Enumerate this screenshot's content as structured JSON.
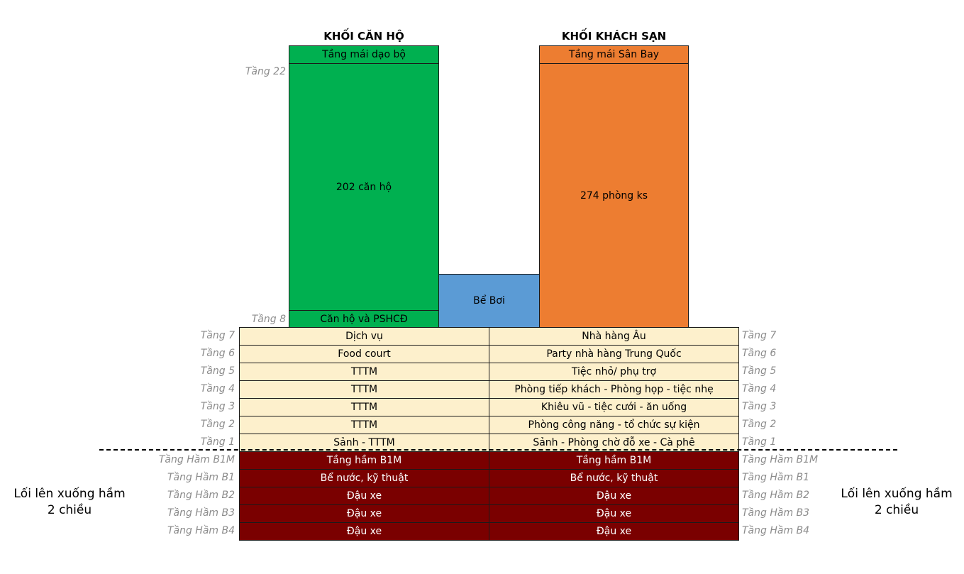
{
  "apartment_block": {
    "title": "KHỐI CĂN HỘ",
    "roof": "Tầng mái dạo bộ",
    "main": "202 căn hộ",
    "lower": "Căn hộ và PSHCĐ",
    "top_floor_label": "Tầng 22",
    "bottom_floor_label": "Tầng 8",
    "color": "#00b050"
  },
  "hotel_block": {
    "title": "KHỐI KHÁCH SẠN",
    "roof": "Tầng mái Sân Bay",
    "main": "274 phòng ks",
    "color": "#ed7d31"
  },
  "pool": {
    "label": "Bể Bơi",
    "color": "#5b9bd5"
  },
  "podium_floors": [
    {
      "floor": "Tầng 7",
      "left": "Dịch vụ",
      "right": "Nhà hàng Âu"
    },
    {
      "floor": "Tầng 6",
      "left": "Food court",
      "right": "Party nhà hàng Trung Quốc"
    },
    {
      "floor": "Tầng 5",
      "left": "TTTM",
      "right": "Tiệc nhỏ/ phụ trợ"
    },
    {
      "floor": "Tầng 4",
      "left": "TTTM",
      "right": "Phòng tiếp khách - Phòng họp - tiệc nhẹ"
    },
    {
      "floor": "Tầng 3",
      "left": "TTTM",
      "right": "Khiêu vũ - tiệc cưới - ăn uống"
    },
    {
      "floor": "Tầng 2",
      "left": "TTTM",
      "right": "Phòng công năng - tổ chức sự kiện"
    },
    {
      "floor": "Tầng 1",
      "left": "Sảnh - TTTM",
      "right": "Sảnh - Phòng chờ đỗ xe - Cà phê"
    }
  ],
  "basement_floors": [
    {
      "floor": "Tầng Hầm B1M",
      "left": "Tầng hầm B1M",
      "right": "Tầng hầm B1M"
    },
    {
      "floor": "Tầng Hầm B1",
      "left": "Bể nước, kỹ thuật",
      "right": "Bể nước, kỹ thuật"
    },
    {
      "floor": "Tầng Hầm B2",
      "left": "Đậu xe",
      "right": "Đậu xe"
    },
    {
      "floor": "Tầng Hầm B3",
      "left": "Đậu xe",
      "right": "Đậu xe"
    },
    {
      "floor": "Tầng Hầm B4",
      "left": "Đậu xe",
      "right": "Đậu xe"
    }
  ],
  "ramp_note": {
    "line1": "Lối lên xuống hầm",
    "line2": "2 chiều"
  },
  "colors": {
    "podium": "#fdf0cc",
    "basement": "#7a0000"
  }
}
